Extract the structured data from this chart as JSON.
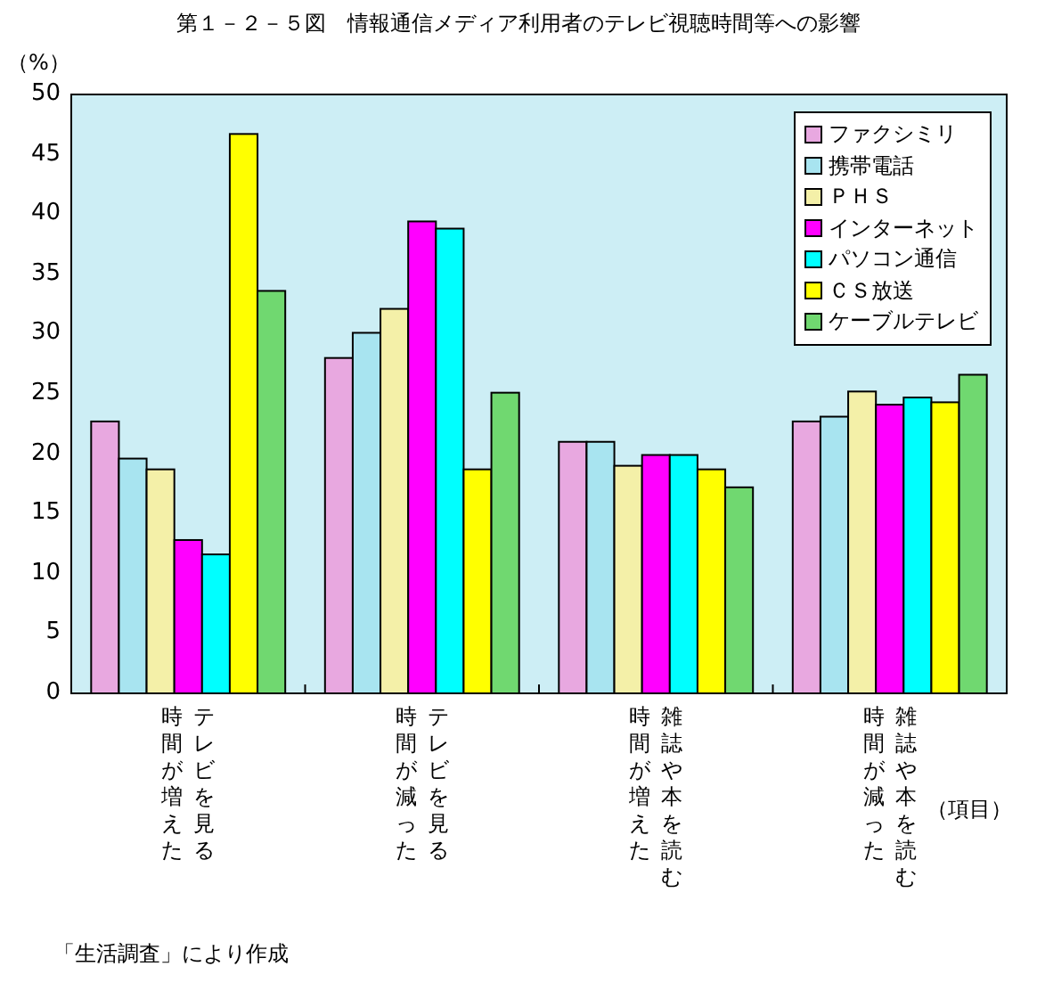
{
  "chart_data": {
    "type": "bar",
    "title": "第１－２－５図　情報通信メディア利用者のテレビ視聴時間等への影響",
    "ylabel": "（%）",
    "xlabel": "（項目）",
    "categories": [
      "テレビを見る時間が増えた",
      "テレビを見る時間が減った",
      "雑誌や本を読む時間が増えた",
      "雑誌や本を読む時間が減った"
    ],
    "series": [
      {
        "name": "ファクシミリ",
        "color": "#e8a8e0",
        "values": [
          22.7,
          28.0,
          21.0,
          22.7
        ]
      },
      {
        "name": "携帯電話",
        "color": "#a8e4f0",
        "values": [
          19.6,
          30.1,
          21.0,
          23.1
        ]
      },
      {
        "name": "ＰＨＳ",
        "color": "#f4f0a8",
        "values": [
          18.7,
          32.1,
          19.0,
          25.2
        ]
      },
      {
        "name": "インターネット",
        "color": "#ff00ff",
        "values": [
          12.8,
          39.4,
          19.9,
          24.1
        ]
      },
      {
        "name": "パソコン通信",
        "color": "#00ffff",
        "values": [
          11.6,
          38.8,
          19.9,
          24.7
        ]
      },
      {
        "name": "ＣＳ放送",
        "color": "#ffff00",
        "values": [
          46.7,
          18.7,
          18.7,
          24.3
        ]
      },
      {
        "name": "ケーブルテレビ",
        "color": "#70d870",
        "values": [
          33.6,
          25.1,
          17.2,
          26.6
        ]
      }
    ],
    "ylim": [
      0,
      50
    ],
    "yticks": [
      0,
      5,
      10,
      15,
      20,
      25,
      30,
      35,
      40,
      45,
      50
    ],
    "grid": false,
    "legend": "top right",
    "annotations": [
      "「生活調査」により作成"
    ]
  }
}
